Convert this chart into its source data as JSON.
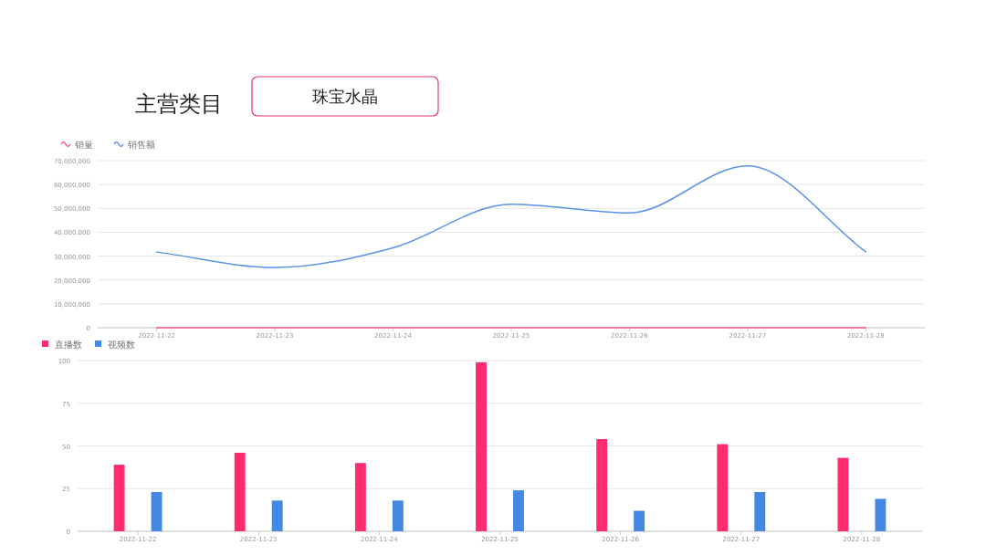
{
  "chart_data": [
    {
      "type": "line",
      "title": "主营类目",
      "subtitle": "珠宝水晶",
      "categories": [
        "2022-11-22",
        "2022-11-23",
        "2022-11-24",
        "2022-11-25",
        "2022-11-26",
        "2022-11-27",
        "2022-11-28"
      ],
      "series": [
        {
          "name": "销量",
          "color": "#f5578a",
          "values": [
            0,
            0,
            0,
            0,
            0,
            0,
            0
          ]
        },
        {
          "name": "销售额",
          "color": "#5b93e8",
          "values": [
            31700000,
            25200000,
            33500000,
            51700000,
            48100000,
            67800000,
            31800000
          ]
        }
      ],
      "ylim": [
        0,
        70000000
      ],
      "yticks": [
        0,
        {
          "value": 10000000,
          "label": "10,000,000"
        },
        {
          "value": 20000000,
          "label": "20,000,000"
        },
        {
          "value": 30000000,
          "label": "30,000,000"
        },
        {
          "value": 40000000,
          "label": "40,000,000"
        },
        {
          "value": 50000000,
          "label": "50,000,000"
        },
        {
          "value": 60000000,
          "label": "60,000,000"
        },
        {
          "value": 70000000,
          "label": "70,000,000"
        }
      ],
      "grid": "y",
      "legend": "top left"
    },
    {
      "type": "bar",
      "categories": [
        "2022-11-22",
        "2022-11-23",
        "2022-11-24",
        "2022-11-25",
        "2022-11-26",
        "2022-11-27",
        "2022-11-28"
      ],
      "series": [
        {
          "name": "直播数",
          "color": "#ff2d6e",
          "values": [
            39,
            46,
            40,
            99,
            54,
            51,
            43
          ]
        },
        {
          "name": "视频数",
          "color": "#4488e3",
          "values": [
            23,
            18,
            18,
            24,
            12,
            23,
            19
          ]
        }
      ],
      "ylim": [
        0,
        100
      ],
      "yticks": [
        0,
        25,
        50,
        75,
        100
      ],
      "grid": "y",
      "legend": "top left"
    }
  ]
}
